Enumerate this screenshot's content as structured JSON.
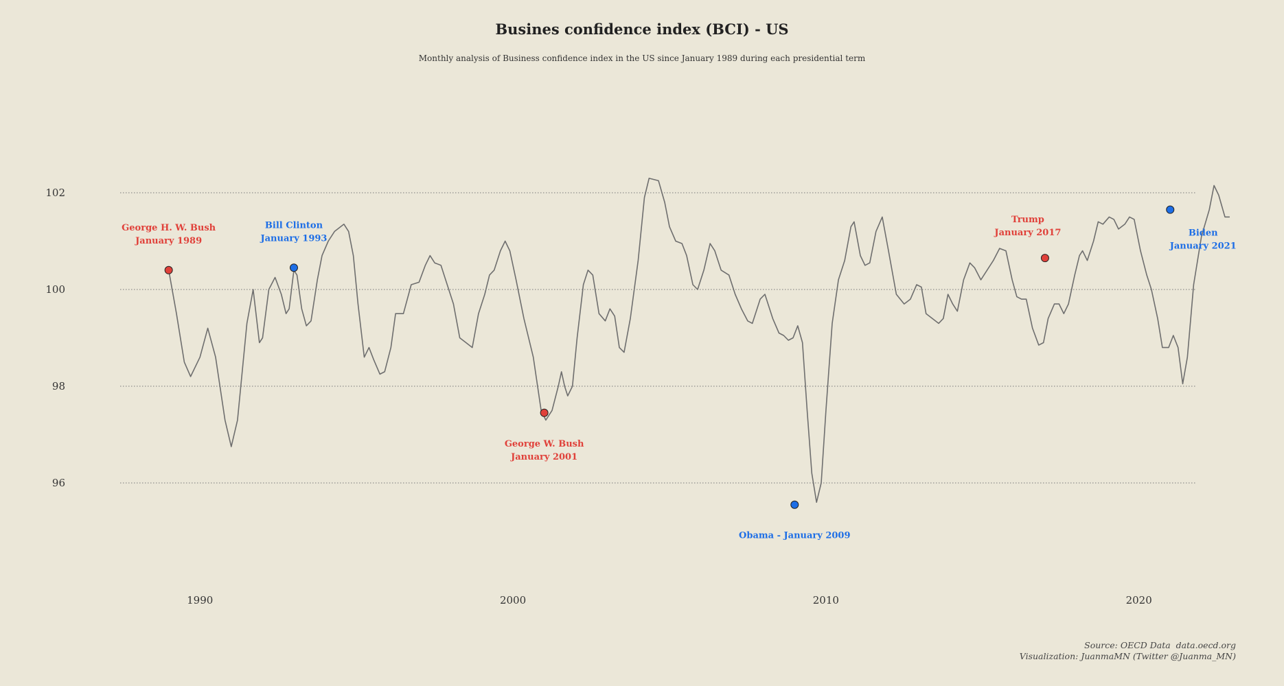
{
  "title": "Busines confidence index (BCI) - US",
  "subtitle": "Monthly analysis of Business confidence index in the US since January 1989 during each presidential term",
  "caption": {
    "line1": "Source: OECD Data  data.oecd.org",
    "line2": "Visualization: JuanmaMN (Twitter @Juanma_MN)"
  },
  "colors": {
    "background": "#ebe7d8",
    "line": "#6e6e6e",
    "republican": "#e0413a",
    "democrat": "#1d6ee6",
    "grid": "#777777"
  },
  "chart_data": {
    "type": "line",
    "xlabel": "",
    "ylabel": "",
    "xlim": [
      1987.45,
      2021.85
    ],
    "ylim": [
      94.0,
      104.0
    ],
    "x_ticks": [
      1990,
      2000,
      2010,
      2020
    ],
    "y_ticks": [
      96,
      98,
      100,
      102
    ],
    "grid": "horizontal dotted",
    "series": [
      {
        "values": [
          [
            1989.0,
            100.4
          ],
          [
            1989.25,
            99.5
          ],
          [
            1989.5,
            98.5
          ],
          [
            1989.7,
            98.2
          ],
          [
            1990.0,
            98.6
          ],
          [
            1990.25,
            99.2
          ],
          [
            1990.5,
            98.6
          ],
          [
            1990.8,
            97.3
          ],
          [
            1991.0,
            96.75
          ],
          [
            1991.2,
            97.3
          ],
          [
            1991.5,
            99.3
          ],
          [
            1991.7,
            100.0
          ],
          [
            1991.9,
            98.9
          ],
          [
            1992.0,
            99.0
          ],
          [
            1992.2,
            100.0
          ],
          [
            1992.4,
            100.25
          ],
          [
            1992.6,
            99.9
          ],
          [
            1992.75,
            99.5
          ],
          [
            1992.85,
            99.6
          ],
          [
            1993.0,
            100.4
          ],
          [
            1993.1,
            100.3
          ],
          [
            1993.25,
            99.6
          ],
          [
            1993.4,
            99.25
          ],
          [
            1993.55,
            99.35
          ],
          [
            1993.75,
            100.2
          ],
          [
            1993.9,
            100.7
          ],
          [
            1994.1,
            101.0
          ],
          [
            1994.3,
            101.2
          ],
          [
            1994.6,
            101.35
          ],
          [
            1994.75,
            101.2
          ],
          [
            1994.9,
            100.7
          ],
          [
            1995.05,
            99.7
          ],
          [
            1995.25,
            98.6
          ],
          [
            1995.4,
            98.8
          ],
          [
            1995.55,
            98.55
          ],
          [
            1995.75,
            98.25
          ],
          [
            1995.9,
            98.3
          ],
          [
            1996.1,
            98.8
          ],
          [
            1996.25,
            99.5
          ],
          [
            1996.5,
            99.5
          ],
          [
            1996.75,
            100.1
          ],
          [
            1997.0,
            100.15
          ],
          [
            1997.2,
            100.5
          ],
          [
            1997.35,
            100.7
          ],
          [
            1997.5,
            100.55
          ],
          [
            1997.7,
            100.5
          ],
          [
            1997.85,
            100.2
          ],
          [
            1998.1,
            99.7
          ],
          [
            1998.3,
            99.0
          ],
          [
            1998.5,
            98.9
          ],
          [
            1998.7,
            98.8
          ],
          [
            1998.9,
            99.5
          ],
          [
            1999.1,
            99.9
          ],
          [
            1999.25,
            100.3
          ],
          [
            1999.4,
            100.4
          ],
          [
            1999.6,
            100.8
          ],
          [
            1999.75,
            101.0
          ],
          [
            1999.9,
            100.8
          ],
          [
            2000.1,
            100.2
          ],
          [
            2000.35,
            99.4
          ],
          [
            2000.65,
            98.6
          ],
          [
            2000.9,
            97.5
          ],
          [
            2001.05,
            97.3
          ],
          [
            2001.25,
            97.5
          ],
          [
            2001.45,
            98.0
          ],
          [
            2001.55,
            98.3
          ],
          [
            2001.65,
            98.0
          ],
          [
            2001.75,
            97.8
          ],
          [
            2001.9,
            98.0
          ],
          [
            2002.05,
            99.0
          ],
          [
            2002.25,
            100.1
          ],
          [
            2002.4,
            100.4
          ],
          [
            2002.55,
            100.3
          ],
          [
            2002.75,
            99.5
          ],
          [
            2002.95,
            99.35
          ],
          [
            2003.1,
            99.6
          ],
          [
            2003.25,
            99.45
          ],
          [
            2003.4,
            98.8
          ],
          [
            2003.55,
            98.7
          ],
          [
            2003.75,
            99.4
          ],
          [
            2004.0,
            100.6
          ],
          [
            2004.2,
            101.9
          ],
          [
            2004.35,
            102.3
          ],
          [
            2004.65,
            102.25
          ],
          [
            2004.85,
            101.8
          ],
          [
            2005.0,
            101.3
          ],
          [
            2005.2,
            101.0
          ],
          [
            2005.4,
            100.95
          ],
          [
            2005.55,
            100.7
          ],
          [
            2005.75,
            100.1
          ],
          [
            2005.9,
            100.0
          ],
          [
            2006.1,
            100.4
          ],
          [
            2006.3,
            100.95
          ],
          [
            2006.45,
            100.8
          ],
          [
            2006.65,
            100.4
          ],
          [
            2006.9,
            100.3
          ],
          [
            2007.1,
            99.9
          ],
          [
            2007.3,
            99.6
          ],
          [
            2007.5,
            99.35
          ],
          [
            2007.65,
            99.3
          ],
          [
            2007.9,
            99.8
          ],
          [
            2008.05,
            99.9
          ],
          [
            2008.3,
            99.4
          ],
          [
            2008.5,
            99.1
          ],
          [
            2008.65,
            99.05
          ],
          [
            2008.8,
            98.95
          ],
          [
            2008.95,
            99.0
          ],
          [
            2009.1,
            99.25
          ],
          [
            2009.25,
            98.9
          ],
          [
            2009.4,
            97.5
          ],
          [
            2009.55,
            96.2
          ],
          [
            2009.7,
            95.6
          ],
          [
            2009.85,
            96.0
          ],
          [
            2010.0,
            97.5
          ],
          [
            2010.2,
            99.3
          ],
          [
            2010.4,
            100.2
          ],
          [
            2010.6,
            100.6
          ],
          [
            2010.8,
            101.3
          ],
          [
            2010.9,
            101.4
          ],
          [
            2011.1,
            100.7
          ],
          [
            2011.25,
            100.5
          ],
          [
            2011.4,
            100.55
          ],
          [
            2011.6,
            101.2
          ],
          [
            2011.8,
            101.5
          ],
          [
            2012.0,
            100.8
          ],
          [
            2012.25,
            99.9
          ],
          [
            2012.5,
            99.7
          ],
          [
            2012.7,
            99.8
          ],
          [
            2012.9,
            100.1
          ],
          [
            2013.05,
            100.05
          ],
          [
            2013.2,
            99.5
          ],
          [
            2013.4,
            99.4
          ],
          [
            2013.6,
            99.3
          ],
          [
            2013.75,
            99.4
          ],
          [
            2013.9,
            99.9
          ],
          [
            2014.05,
            99.7
          ],
          [
            2014.2,
            99.55
          ],
          [
            2014.4,
            100.2
          ],
          [
            2014.6,
            100.55
          ],
          [
            2014.75,
            100.45
          ],
          [
            2014.95,
            100.2
          ],
          [
            2015.15,
            100.4
          ],
          [
            2015.35,
            100.6
          ],
          [
            2015.55,
            100.85
          ],
          [
            2015.75,
            100.8
          ],
          [
            2015.95,
            100.2
          ],
          [
            2016.1,
            99.85
          ],
          [
            2016.25,
            99.8
          ],
          [
            2016.4,
            99.8
          ],
          [
            2016.6,
            99.2
          ],
          [
            2016.8,
            98.85
          ],
          [
            2016.95,
            98.9
          ],
          [
            2017.1,
            99.4
          ],
          [
            2017.3,
            99.7
          ],
          [
            2017.45,
            99.7
          ],
          [
            2017.6,
            99.5
          ],
          [
            2017.75,
            99.7
          ],
          [
            2017.95,
            100.3
          ],
          [
            2018.1,
            100.7
          ],
          [
            2018.2,
            100.8
          ],
          [
            2018.35,
            100.6
          ],
          [
            2018.55,
            101.0
          ],
          [
            2018.7,
            101.4
          ],
          [
            2018.85,
            101.35
          ],
          [
            2019.05,
            101.5
          ],
          [
            2019.2,
            101.45
          ],
          [
            2019.35,
            101.25
          ],
          [
            2019.55,
            101.35
          ],
          [
            2019.7,
            101.5
          ],
          [
            2019.85,
            101.45
          ],
          [
            2020.05,
            100.8
          ],
          [
            2020.25,
            100.3
          ],
          [
            2020.4,
            100.0
          ],
          [
            2020.6,
            99.4
          ],
          [
            2020.75,
            98.8
          ],
          [
            2020.95,
            98.8
          ],
          [
            2021.1,
            99.05
          ],
          [
            2021.25,
            98.8
          ],
          [
            2021.4,
            98.05
          ],
          [
            2021.55,
            98.6
          ],
          [
            2021.75,
            100.1
          ],
          [
            2022.0,
            101.1
          ],
          [
            2022.25,
            101.65
          ],
          [
            2022.4,
            102.15
          ],
          [
            2022.55,
            101.95
          ],
          [
            2022.75,
            101.5
          ],
          [
            2022.9,
            101.5
          ]
        ]
      }
    ],
    "presidents": [
      {
        "line1": "George H. W. Bush",
        "line2": "January 1989",
        "x": 1989.0,
        "y": 100.4,
        "party": "republican",
        "label_pos": "above"
      },
      {
        "line1": "Bill Clinton",
        "line2": "January 1993",
        "x": 1993.0,
        "y": 100.45,
        "party": "democrat",
        "label_pos": "above"
      },
      {
        "line1": "George W. Bush",
        "line2": "January 2001",
        "x": 2001.0,
        "y": 97.45,
        "party": "republican",
        "label_pos": "below"
      },
      {
        "line1": "Obama - January 2009",
        "line2": "",
        "x": 2009.0,
        "y": 95.55,
        "party": "democrat",
        "label_pos": "below"
      },
      {
        "line1": "Trump",
        "line2": "January 2017",
        "x": 2017.0,
        "y": 100.65,
        "party": "republican",
        "label_pos": "above-left"
      },
      {
        "line1": "Biden",
        "line2": "January 2021",
        "x": 2021.0,
        "y": 101.65,
        "party": "democrat",
        "label_pos": "below-right"
      }
    ]
  }
}
